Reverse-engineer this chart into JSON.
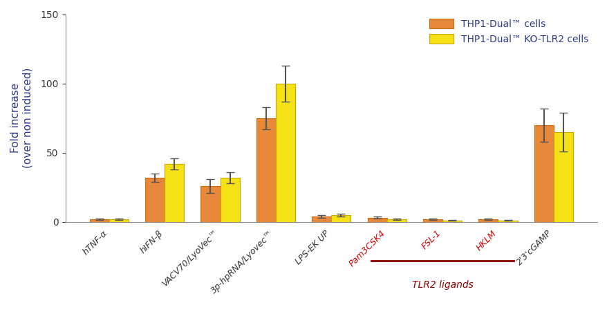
{
  "categories": [
    "hTNF-α",
    "hIFN-β",
    "VACV70/LyoVec™",
    "3p-hpRNA/Lyovec™",
    "LPS-EK UP",
    "Pam3CSK4",
    "FSL-1",
    "HKLM",
    "2'3'cGAMP"
  ],
  "orange_values": [
    2,
    32,
    26,
    75,
    4,
    3,
    2,
    2,
    70
  ],
  "yellow_values": [
    2,
    42,
    32,
    100,
    5,
    2,
    1,
    1,
    65
  ],
  "orange_errors": [
    0.5,
    3,
    5,
    8,
    1,
    0.8,
    0.5,
    0.5,
    12
  ],
  "yellow_errors": [
    0.5,
    4,
    4,
    13,
    1,
    0.5,
    0.3,
    0.3,
    14
  ],
  "orange_color": "#E8883A",
  "yellow_color": "#F5E116",
  "orange_edge": "#C96A10",
  "yellow_edge": "#C8A800",
  "ylabel": "Fold increase\n(over non induced)",
  "ylim": [
    0,
    150
  ],
  "yticks": [
    0,
    50,
    100,
    150
  ],
  "legend_labels": [
    "THP1-Dual™ cells",
    "THP1-Dual™ KO-TLR2 cells"
  ],
  "tlr2_ligands": [
    "Pam3CSK4",
    "FSL-1",
    "HKLM"
  ],
  "tlr2_label": "TLR2 ligands",
  "tlr2_color": "#8B0000",
  "red_label_color": "#CC0000",
  "axis_label_color": "#2E3A8C",
  "tick_label_color": "#333333",
  "background_color": "#FFFFFF",
  "bar_width": 0.35,
  "error_capsize": 4,
  "error_linewidth": 1.5
}
